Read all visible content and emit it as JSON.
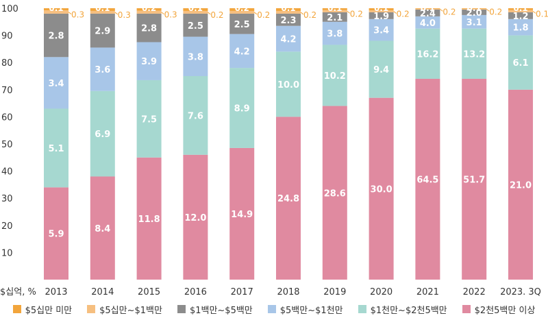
{
  "chart_data": {
    "type": "bar",
    "stacked": true,
    "unit_label": "$십억, %",
    "categories": [
      "2013",
      "2014",
      "2015",
      "2016",
      "2017",
      "2018",
      "2019",
      "2020",
      "2021",
      "2022",
      "2023. 3Q"
    ],
    "ylim": [
      0,
      100
    ],
    "yticks": [
      "10",
      "20",
      "30",
      "40",
      "50",
      "60",
      "70",
      "80",
      "90",
      "100"
    ],
    "grid": false,
    "legend_position": "bottom",
    "series": [
      {
        "name": "$2천5백만 이상",
        "color": "#e08aa0",
        "share": [
          34,
          38,
          45,
          46,
          48.5,
          60,
          64,
          67,
          74,
          74,
          70
        ],
        "labels": [
          "5.9",
          "8.4",
          "11.8",
          "12.0",
          "14.9",
          "24.8",
          "28.6",
          "30.0",
          "64.5",
          "51.7",
          "21.0"
        ]
      },
      {
        "name": "$1천만~$2천5백만",
        "color": "#a6d8d0",
        "share": [
          29,
          31.5,
          28.5,
          29,
          29.5,
          24,
          22.5,
          21,
          18.5,
          18.5,
          20
        ],
        "labels": [
          "5.1",
          "6.9",
          "7.5",
          "7.6",
          "8.9",
          "10.0",
          "10.2",
          "9.4",
          "16.2",
          "13.2",
          "6.1"
        ]
      },
      {
        "name": "$5백만~$1천만",
        "color": "#a8c6e8",
        "share": [
          19,
          16,
          14,
          14.5,
          12.5,
          9.5,
          8.5,
          8,
          4.5,
          5,
          6
        ],
        "labels": [
          "3.4",
          "3.6",
          "3.9",
          "3.8",
          "4.2",
          "4.2",
          "3.8",
          "3.4",
          "4.0",
          "3.1",
          "1.8"
        ]
      },
      {
        "name": "$1백만~$5백만",
        "color": "#8c8c8c",
        "share": [
          16,
          12.5,
          10.5,
          8.5,
          7.5,
          4.5,
          3.5,
          2.5,
          2.5,
          2,
          2.5
        ],
        "labels": [
          "2.8",
          "2.9",
          "2.8",
          "2.5",
          "2.5",
          "2.3",
          "2.1",
          "1.9",
          "2.4",
          "2.0",
          "1.2"
        ]
      },
      {
        "name": "$5십만~$1백만",
        "color": "#f6bf80",
        "share": [
          1.2,
          1,
          1.1,
          1,
          1,
          1,
          0.8,
          0.7,
          0.3,
          0.3,
          0.8
        ],
        "labels": [
          "0.3",
          "0.3",
          "0.3",
          "0.2",
          "0.2",
          "0.2",
          "0.2",
          "0.2",
          "0.2",
          "0.2",
          "0.1"
        ]
      },
      {
        "name": "$5십만 미만",
        "color": "#f2a53c",
        "share": [
          0.8,
          1,
          0.9,
          1,
          1,
          1,
          0.7,
          0.8,
          0.2,
          0.2,
          0.7
        ],
        "labels": [
          "0.1",
          "0.1",
          "0.2",
          "0.1",
          "0.2",
          "0.1",
          "0.1",
          "0.1",
          "0.1",
          "0.1",
          "0.1"
        ]
      }
    ]
  }
}
